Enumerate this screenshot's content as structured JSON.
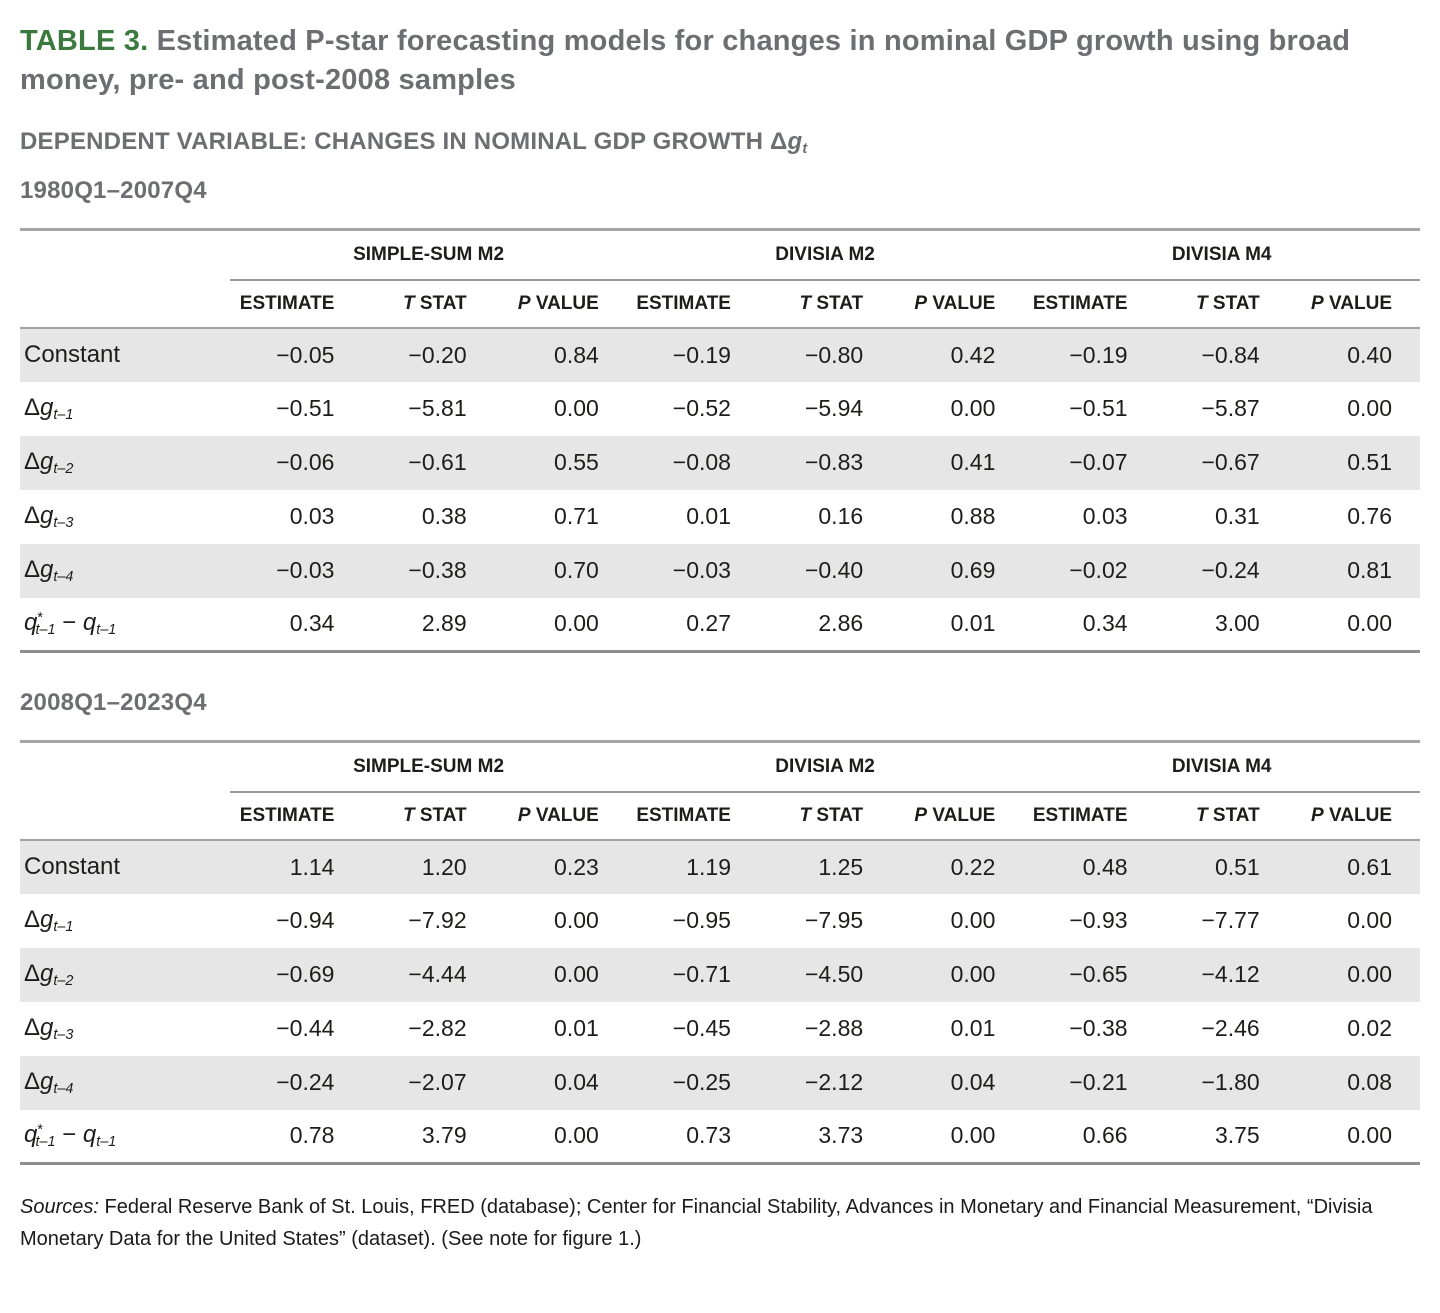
{
  "page": {
    "title_label": "TABLE 3.",
    "title_text": " Estimated P-star forecasting models for changes in nominal GDP growth using broad money, pre- and post-2008 samples",
    "dep_prefix": "DEPENDENT VARIABLE: CHANGES IN NOMINAL GDP GROWTH ",
    "dep_delta": "Δ",
    "dep_var": "g",
    "dep_sub": "t",
    "sources_label": "Sources:",
    "sources_text": " Federal Reserve Bank of St. Louis, FRED (database); Center for Financial Stability, Advances in Monetary and Financial Measurement, “Divisia Monetary Data for the United States” (dataset). (See note for figure 1.)"
  },
  "table_headers": {
    "groups": [
      "SIMPLE-SUM M2",
      "DIVISIA M2",
      "DIVISIA M4"
    ],
    "columns": [
      [
        {
          "t": "ESTIMATE"
        }
      ],
      [
        {
          "t": "T",
          "s": "i"
        },
        {
          "t": " STAT"
        }
      ],
      [
        {
          "t": "P",
          "s": "i"
        },
        {
          "t": " VALUE"
        }
      ]
    ]
  },
  "sections": [
    {
      "period": "1980Q1–2007Q4",
      "rows": [
        {
          "label": [
            {
              "t": "Constant"
            }
          ],
          "values": [
            "−0.05",
            "−0.20",
            "0.84",
            "−0.19",
            "−0.80",
            "0.42",
            "−0.19",
            "−0.84",
            "0.40"
          ]
        },
        {
          "label": [
            {
              "t": "Δ"
            },
            {
              "t": "g",
              "s": "i"
            },
            {
              "t": "t–1",
              "s": "sub"
            }
          ],
          "values": [
            "−0.51",
            "−5.81",
            "0.00",
            "−0.52",
            "−5.94",
            "0.00",
            "−0.51",
            "−5.87",
            "0.00"
          ]
        },
        {
          "label": [
            {
              "t": "Δ"
            },
            {
              "t": "g",
              "s": "i"
            },
            {
              "t": "t–2",
              "s": "sub"
            }
          ],
          "values": [
            "−0.06",
            "−0.61",
            "0.55",
            "−0.08",
            "−0.83",
            "0.41",
            "−0.07",
            "−0.67",
            "0.51"
          ]
        },
        {
          "label": [
            {
              "t": "Δ"
            },
            {
              "t": "g",
              "s": "i"
            },
            {
              "t": "t–3",
              "s": "sub"
            }
          ],
          "values": [
            "0.03",
            "0.38",
            "0.71",
            "0.01",
            "0.16",
            "0.88",
            "0.03",
            "0.31",
            "0.76"
          ]
        },
        {
          "label": [
            {
              "t": "Δ"
            },
            {
              "t": "g",
              "s": "i"
            },
            {
              "t": "t–4",
              "s": "sub"
            }
          ],
          "values": [
            "−0.03",
            "−0.38",
            "0.70",
            "−0.03",
            "−0.40",
            "0.69",
            "−0.02",
            "−0.24",
            "0.81"
          ]
        },
        {
          "label": [
            {
              "t": "q",
              "s": "i"
            },
            {
              "t": "*",
              "s": "sup"
            },
            {
              "t": "t–1",
              "s": "sub"
            },
            {
              "t": " − "
            },
            {
              "t": "q",
              "s": "i"
            },
            {
              "t": "t–1",
              "s": "sub"
            }
          ],
          "values": [
            "0.34",
            "2.89",
            "0.00",
            "0.27",
            "2.86",
            "0.01",
            "0.34",
            "3.00",
            "0.00"
          ]
        }
      ]
    },
    {
      "period": "2008Q1–2023Q4",
      "rows": [
        {
          "label": [
            {
              "t": "Constant"
            }
          ],
          "values": [
            "1.14",
            "1.20",
            "0.23",
            "1.19",
            "1.25",
            "0.22",
            "0.48",
            "0.51",
            "0.61"
          ]
        },
        {
          "label": [
            {
              "t": "Δ"
            },
            {
              "t": "g",
              "s": "i"
            },
            {
              "t": "t–1",
              "s": "sub"
            }
          ],
          "values": [
            "−0.94",
            "−7.92",
            "0.00",
            "−0.95",
            "−7.95",
            "0.00",
            "−0.93",
            "−7.77",
            "0.00"
          ]
        },
        {
          "label": [
            {
              "t": "Δ"
            },
            {
              "t": "g",
              "s": "i"
            },
            {
              "t": "t–2",
              "s": "sub"
            }
          ],
          "values": [
            "−0.69",
            "−4.44",
            "0.00",
            "−0.71",
            "−4.50",
            "0.00",
            "−0.65",
            "−4.12",
            "0.00"
          ]
        },
        {
          "label": [
            {
              "t": "Δ"
            },
            {
              "t": "g",
              "s": "i"
            },
            {
              "t": "t–3",
              "s": "sub"
            }
          ],
          "values": [
            "−0.44",
            "−2.82",
            "0.01",
            "−0.45",
            "−2.88",
            "0.01",
            "−0.38",
            "−2.46",
            "0.02"
          ]
        },
        {
          "label": [
            {
              "t": "Δ"
            },
            {
              "t": "g",
              "s": "i"
            },
            {
              "t": "t–4",
              "s": "sub"
            }
          ],
          "values": [
            "−0.24",
            "−2.07",
            "0.04",
            "−0.25",
            "−2.12",
            "0.04",
            "−0.21",
            "−1.80",
            "0.08"
          ]
        },
        {
          "label": [
            {
              "t": "q",
              "s": "i"
            },
            {
              "t": "*",
              "s": "sup"
            },
            {
              "t": "t–1",
              "s": "sub"
            },
            {
              "t": " − "
            },
            {
              "t": "q",
              "s": "i"
            },
            {
              "t": "t–1",
              "s": "sub"
            }
          ],
          "values": [
            "0.78",
            "3.79",
            "0.00",
            "0.73",
            "3.73",
            "0.00",
            "0.66",
            "3.75",
            "0.00"
          ]
        }
      ]
    }
  ],
  "colors": {
    "accent_green": "#3b7a3e",
    "heading_gray": "#6d6e71",
    "row_shade": "#e6e6e6",
    "rule_gray": "#9b9b9b",
    "text_dark": "#1d1d1b"
  }
}
